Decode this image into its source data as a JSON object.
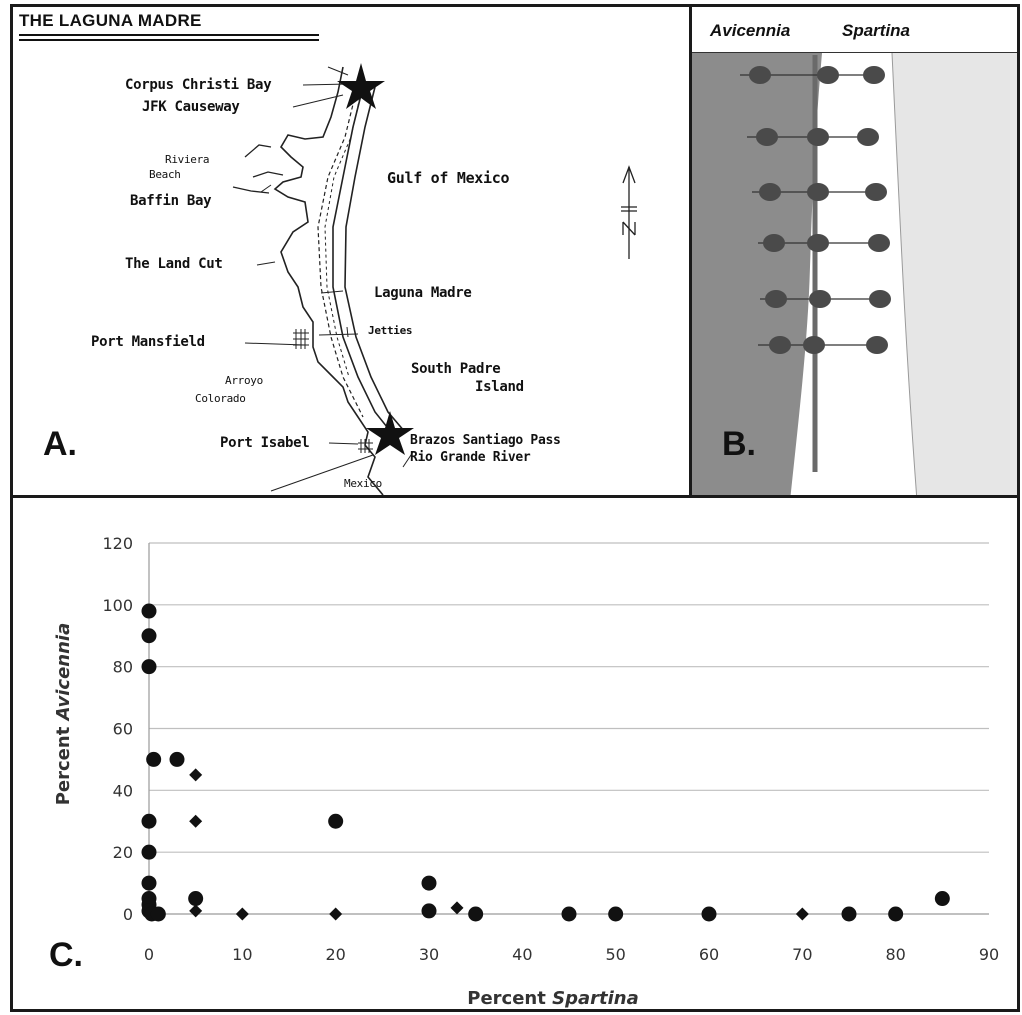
{
  "panelA": {
    "letter": "A.",
    "title": "THE LAGUNA MADRE",
    "labels": {
      "corpus": "Corpus Christi Bay",
      "jfk": "JFK Causeway",
      "riviera1": "Riviera",
      "riviera2": "Beach",
      "baffin": "Baffin Bay",
      "gulf": "Gulf of Mexico",
      "landcut": "The Land Cut",
      "laguna": "Laguna Madre",
      "jetties": "Jetties",
      "mansfield": "Port Mansfield",
      "spi1": "South Padre",
      "spi2": "Island",
      "arroyo1": "Arroyo",
      "arroyo2": "Colorado",
      "isabel": "Port Isabel",
      "brazos": "Brazos Santiago Pass",
      "riogrande": "Rio Grande River",
      "mexico": "Mexico",
      "north": "N"
    }
  },
  "panelB": {
    "letter": "B.",
    "left_header": "Avicennia",
    "right_header": "Spartina"
  },
  "panelC": {
    "letter": "C."
  },
  "colors": {
    "marker": "#111111",
    "grid": "#bfbfbf",
    "mangrove_zone": "#8c8c8c",
    "marsh_zone": "#ffffff",
    "water_zone": "#e6e6e6"
  },
  "chart_data": {
    "type": "scatter",
    "xlabel_prefix": "Percent ",
    "xlabel_italic": "Spartina",
    "ylabel_prefix": "Percent ",
    "ylabel_italic": "Avicennia",
    "xlim": [
      0,
      90
    ],
    "ylim": [
      0,
      120
    ],
    "xticks": [
      0,
      10,
      20,
      30,
      40,
      50,
      60,
      70,
      80,
      90
    ],
    "yticks": [
      0,
      20,
      40,
      60,
      80,
      100,
      120
    ],
    "grid": "horizontal",
    "series": [
      {
        "marker": "circle",
        "points": [
          [
            0,
            98
          ],
          [
            0,
            90
          ],
          [
            0,
            80
          ],
          [
            0.5,
            50
          ],
          [
            3,
            50
          ],
          [
            0,
            30
          ],
          [
            0,
            20
          ],
          [
            0,
            10
          ],
          [
            0,
            5
          ],
          [
            0,
            3
          ],
          [
            0,
            1
          ],
          [
            0.3,
            0
          ],
          [
            1,
            0
          ],
          [
            5,
            5
          ],
          [
            20,
            30
          ],
          [
            30,
            10
          ],
          [
            30,
            1
          ],
          [
            35,
            0
          ],
          [
            45,
            0
          ],
          [
            50,
            0
          ],
          [
            60,
            0
          ],
          [
            75,
            0
          ],
          [
            80,
            0
          ],
          [
            85,
            5
          ]
        ]
      },
      {
        "marker": "diamond",
        "points": [
          [
            5,
            45
          ],
          [
            5,
            30
          ],
          [
            5,
            1
          ],
          [
            10,
            0
          ],
          [
            20,
            0
          ],
          [
            33,
            2
          ],
          [
            70,
            0
          ]
        ]
      }
    ]
  }
}
